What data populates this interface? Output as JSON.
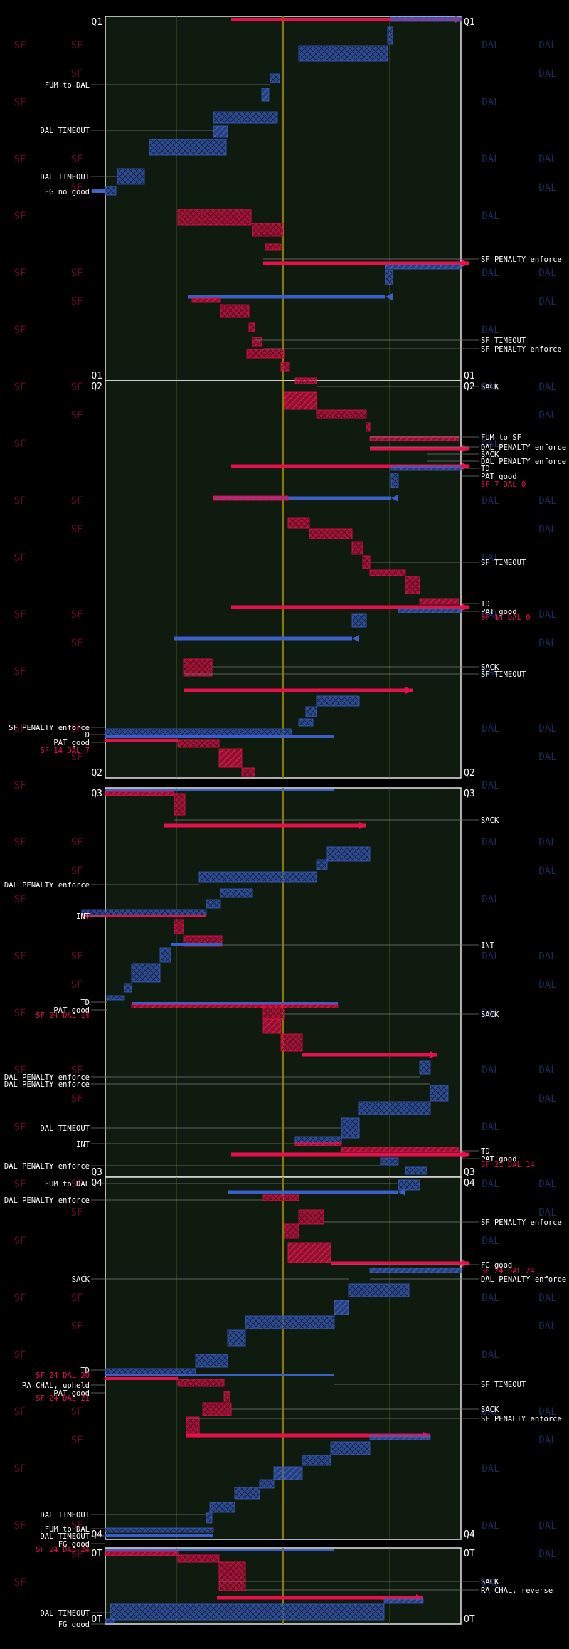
{
  "colors": {
    "background": "#000000",
    "panel_fill": "#0f1b0f",
    "panel_border": "#e6e6e6",
    "sf": "#e8104a",
    "dal": "#3a5fc8",
    "midfield": "#8c7a00",
    "yardline": "#4a5a22",
    "annotation_white": "#ffffff",
    "annotation_red": "#e8104a",
    "watermark_sf": "#6a0a24",
    "watermark_dal": "#1c2a55"
  },
  "chart_data": {
    "type": "drive-chart",
    "periods": [
      {
        "label": "Q1",
        "annotations_left": [
          "FUM to DAL",
          "DAL TIMEOUT",
          "DAL TIMEOUT",
          "FG no good"
        ],
        "annotations_right": [
          "SF PENALTY enforce",
          "SF TIMEOUT",
          "SF PENALTY enforce"
        ]
      },
      {
        "label": "Q2",
        "annotations_left": [
          "SF PENALTY enforce",
          "TD",
          "PAT good"
        ],
        "annotations_left_score": "SF 14 DAL 7",
        "annotations_right": [
          "SACK",
          "FUM to SF",
          "DAL PENALTY enforce",
          "SACK",
          "DAL PENALTY enforce",
          "TD",
          "PAT good",
          "SF TIMEOUT",
          "TD",
          "PAT good",
          "SACK",
          "SF TIMEOUT"
        ],
        "annotations_right_scores": [
          "SF 7 DAL 0",
          "SF 14 DAL 0"
        ]
      },
      {
        "label": "Q3",
        "annotations_left": [
          "DAL PENALTY enforce",
          "INT",
          "TD",
          "PAT good",
          "DAL PENALTY enforce",
          "DAL PENALTY enforce",
          "DAL TIMEOUT",
          "INT",
          "DAL PENALTY enforce"
        ],
        "annotations_left_score": "SF 24 DAL 14",
        "annotations_right": [
          "SACK",
          "INT",
          "SACK",
          "TD",
          "PAT good"
        ],
        "annotations_right_score": "SF 21 DAL 14"
      },
      {
        "label": "Q4",
        "annotations_left": [
          "FUM to DAL",
          "DAL PENALTY enforce",
          "SACK",
          "TD",
          "RA CHAL, upheld",
          "PAT good",
          "DAL TIMEOUT",
          "FUM to DAL",
          "DAL TIMEOUT",
          "FG good"
        ],
        "annotations_left_scores": [
          "SF 24 DAL 20",
          "SF 24 DAL 21",
          "SF 24 DAL 24"
        ],
        "annotations_right": [
          "SF PENALTY enforce",
          "FG good",
          "DAL PENALTY enforce",
          "SF TIMEOUT",
          "SACK",
          "SF PENALTY enforce"
        ],
        "annotations_right_score": "SF 24 DAL 24"
      },
      {
        "label": "OT",
        "annotations_left": [
          "DAL TIMEOUT",
          "FG good"
        ],
        "annotations_right": [
          "SACK",
          "RA CHAL, reverse"
        ]
      }
    ],
    "watermarks": {
      "left": "SF",
      "right": "DAL"
    }
  }
}
